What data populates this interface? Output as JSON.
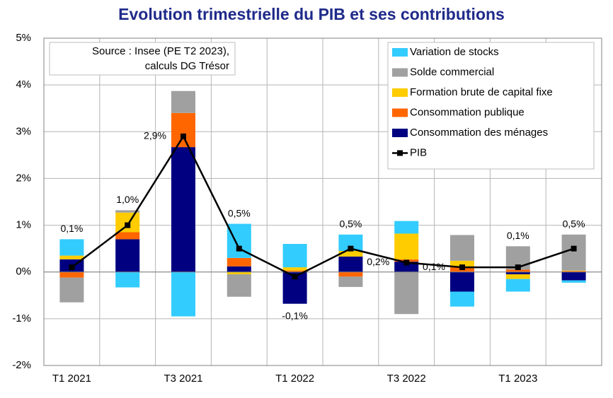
{
  "chart_data": {
    "type": "bar",
    "stacked": true,
    "title": "Evolution trimestrielle du PIB et ses contributions",
    "annotation": [
      "Source : Insee (PE T2 2023),",
      "calculs DG Trésor"
    ],
    "categories": [
      "T1 2021",
      null,
      "T3 2021",
      null,
      "T1 2022",
      null,
      "T3 2022",
      null,
      "T1 2023",
      null
    ],
    "series": [
      {
        "name": "Variation de stocks",
        "color": "#33ccff",
        "values": [
          0.35,
          -0.33,
          -0.95,
          0.73,
          0.5,
          0.35,
          0.27,
          -0.32,
          -0.27,
          -0.05
        ]
      },
      {
        "name": "Solde commercial",
        "color": "#a0a0a0",
        "values": [
          -0.53,
          0.05,
          0.47,
          -0.48,
          0,
          -0.22,
          -0.9,
          0.55,
          0.5,
          0.77
        ]
      },
      {
        "name": "Formation brute de capital fixe",
        "color": "#ffcc00",
        "values": [
          0.08,
          0.42,
          0,
          -0.05,
          0.07,
          0.12,
          0.55,
          0.12,
          -0.1,
          0.01
        ]
      },
      {
        "name": "Consommation publique",
        "color": "#ff6600",
        "values": [
          -0.12,
          0.15,
          0.73,
          0.18,
          0.03,
          -0.1,
          0.05,
          0.12,
          0.05,
          0.02
        ]
      },
      {
        "name": "Consommation des ménages",
        "color": "#000080",
        "values": [
          0.27,
          0.7,
          2.67,
          0.12,
          -0.68,
          0.33,
          0.22,
          -0.42,
          -0.05,
          -0.18
        ]
      },
      {
        "name": "PIB",
        "type": "line",
        "color": "#000000",
        "values": [
          0.1,
          1.0,
          2.9,
          0.5,
          -0.1,
          0.5,
          0.2,
          0.1,
          0.1,
          0.5
        ],
        "value_labels": [
          "0,1%",
          "1,0%",
          "2,9%",
          "0,5%",
          "-0,1%",
          "0,5%",
          "0,2%",
          "0,1%",
          "0,1%",
          "0,5%"
        ]
      }
    ],
    "ylim": [
      -2,
      5
    ],
    "yticks": [
      {
        "value": -2,
        "label": "-2%"
      },
      {
        "value": -1,
        "label": "-1%"
      },
      {
        "value": 0,
        "label": "0%"
      },
      {
        "value": 1,
        "label": "1%"
      },
      {
        "value": 2,
        "label": "2%"
      },
      {
        "value": 3,
        "label": "3%"
      },
      {
        "value": 4,
        "label": "4%"
      },
      {
        "value": 5,
        "label": "5%"
      }
    ],
    "grid": true,
    "legend": "top-right"
  }
}
